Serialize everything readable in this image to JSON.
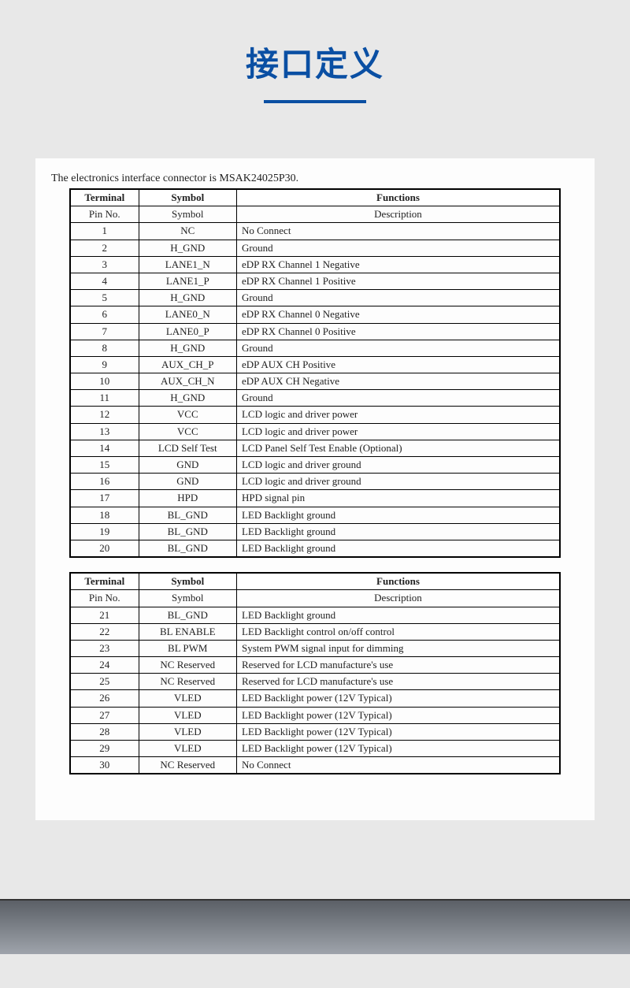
{
  "header": {
    "title": "接口定义"
  },
  "intro": "The electronics interface connector is MSAK24025P30.",
  "table1": {
    "head": [
      "Terminal",
      "Symbol",
      "Functions"
    ],
    "sub": [
      "Pin No.",
      "Symbol",
      "Description"
    ],
    "rows": [
      [
        "1",
        "NC",
        "No Connect"
      ],
      [
        "2",
        "H_GND",
        "Ground"
      ],
      [
        "3",
        "LANE1_N",
        "eDP RX Channel 1 Negative"
      ],
      [
        "4",
        "LANE1_P",
        "eDP RX Channel 1 Positive"
      ],
      [
        "5",
        "H_GND",
        "Ground"
      ],
      [
        "6",
        "LANE0_N",
        "eDP RX Channel 0 Negative"
      ],
      [
        "7",
        "LANE0_P",
        "eDP RX Channel 0 Positive"
      ],
      [
        "8",
        "H_GND",
        "Ground"
      ],
      [
        "9",
        "AUX_CH_P",
        "eDP AUX CH Positive"
      ],
      [
        "10",
        "AUX_CH_N",
        "eDP AUX CH Negative"
      ],
      [
        "11",
        "H_GND",
        "Ground"
      ],
      [
        "12",
        "VCC",
        "LCD logic and driver power"
      ],
      [
        "13",
        "VCC",
        "LCD logic and driver power"
      ],
      [
        "14",
        "LCD Self Test",
        "LCD Panel Self Test Enable (Optional)"
      ],
      [
        "15",
        "GND",
        "LCD logic and driver ground"
      ],
      [
        "16",
        "GND",
        "LCD logic and driver ground"
      ],
      [
        "17",
        "HPD",
        "HPD signal pin"
      ],
      [
        "18",
        "BL_GND",
        "LED Backlight ground"
      ],
      [
        "19",
        "BL_GND",
        "LED Backlight ground"
      ],
      [
        "20",
        "BL_GND",
        "LED Backlight ground"
      ]
    ]
  },
  "table2": {
    "head": [
      "Terminal",
      "Symbol",
      "Functions"
    ],
    "sub": [
      "Pin No.",
      "Symbol",
      "Description"
    ],
    "rows": [
      [
        "21",
        "BL_GND",
        "LED Backlight ground"
      ],
      [
        "22",
        "BL ENABLE",
        "LED Backlight control on/off control"
      ],
      [
        "23",
        "BL PWM",
        "System PWM signal input for dimming"
      ],
      [
        "24",
        "NC Reserved",
        "Reserved for LCD manufacture's use"
      ],
      [
        "25",
        "NC Reserved",
        "Reserved for LCD manufacture's use"
      ],
      [
        "26",
        "VLED",
        "LED Backlight power (12V Typical)"
      ],
      [
        "27",
        "VLED",
        "LED Backlight power (12V Typical)"
      ],
      [
        "28",
        "VLED",
        "LED Backlight power (12V Typical)"
      ],
      [
        "29",
        "VLED",
        "LED Backlight power (12V Typical)"
      ],
      [
        "30",
        "NC Reserved",
        "No Connect"
      ]
    ]
  }
}
